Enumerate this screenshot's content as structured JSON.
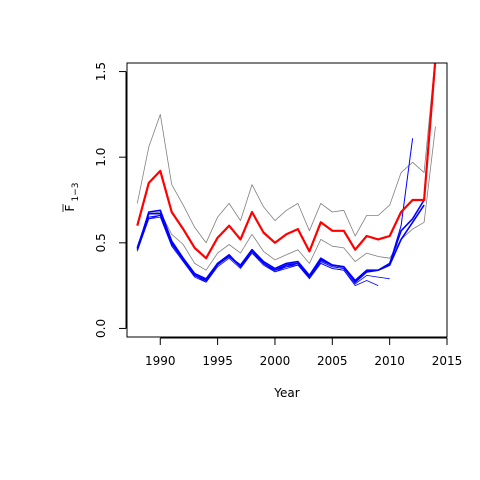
{
  "chart_data": {
    "type": "line",
    "xlabel": "Year",
    "ylabel_main": "F",
    "ylabel_sub": "1−3",
    "xlim": [
      1987.1,
      2015.0
    ],
    "ylim": [
      -0.05,
      1.55
    ],
    "xticks": [
      1990,
      1995,
      2000,
      2005,
      2010,
      2015
    ],
    "yticks": [
      0.0,
      0.5,
      1.0,
      1.5
    ],
    "ytick_labels": [
      "0.0",
      "0.5",
      "1.0",
      "1.5"
    ],
    "grid": false,
    "colors": {
      "main": "#ff0000",
      "ci": "#808080",
      "retro": "#0000ff"
    },
    "series": [
      {
        "role": "main",
        "color": "#ff0000",
        "width": 2.2,
        "x": [
          1988,
          1989,
          1990,
          1991,
          1992,
          1993,
          1994,
          1995,
          1996,
          1997,
          1998,
          1999,
          2000,
          2001,
          2002,
          2003,
          2004,
          2005,
          2006,
          2007,
          2008,
          2009,
          2010,
          2011,
          2012,
          2013,
          2014
        ],
        "y": [
          0.6,
          0.85,
          0.92,
          0.68,
          0.58,
          0.47,
          0.41,
          0.53,
          0.6,
          0.52,
          0.68,
          0.56,
          0.5,
          0.55,
          0.58,
          0.45,
          0.62,
          0.57,
          0.57,
          0.46,
          0.54,
          0.52,
          0.54,
          0.68,
          0.75,
          0.75,
          1.58
        ]
      },
      {
        "role": "ci-upper",
        "color": "#808080",
        "width": 0.8,
        "x": [
          1988,
          1989,
          1990,
          1991,
          1992,
          1993,
          1994,
          1995,
          1996,
          1997,
          1998,
          1999,
          2000,
          2001,
          2002,
          2003,
          2004,
          2005,
          2006,
          2007,
          2008,
          2009,
          2010,
          2011,
          2012,
          2013,
          2014
        ],
        "y": [
          0.73,
          1.06,
          1.25,
          0.84,
          0.72,
          0.59,
          0.5,
          0.65,
          0.73,
          0.63,
          0.84,
          0.71,
          0.63,
          0.69,
          0.73,
          0.57,
          0.73,
          0.68,
          0.69,
          0.54,
          0.66,
          0.66,
          0.72,
          0.91,
          0.97,
          0.91,
          1.6
        ]
      },
      {
        "role": "ci-lower",
        "color": "#808080",
        "width": 0.8,
        "x": [
          1988,
          1989,
          1990,
          1991,
          1992,
          1993,
          1994,
          1995,
          1996,
          1997,
          1998,
          1999,
          2000,
          2001,
          2002,
          2003,
          2004,
          2005,
          2006,
          2007,
          2008,
          2009,
          2010,
          2011,
          2012,
          2013,
          2014
        ],
        "y": [
          0.48,
          0.67,
          0.68,
          0.55,
          0.49,
          0.38,
          0.34,
          0.44,
          0.49,
          0.44,
          0.55,
          0.45,
          0.4,
          0.43,
          0.46,
          0.38,
          0.52,
          0.48,
          0.47,
          0.39,
          0.44,
          0.42,
          0.41,
          0.52,
          0.58,
          0.62,
          1.18
        ]
      },
      {
        "role": "retro",
        "color": "#0000ff",
        "width": 1.6,
        "x": [
          1988,
          1989,
          1990,
          1991,
          1992,
          1993,
          1994,
          1995,
          1996,
          1997,
          1998,
          1999,
          2000,
          2001,
          2002,
          2003,
          2004,
          2005,
          2006,
          2007,
          2008,
          2009,
          2010,
          2011,
          2012,
          2013,
          2014
        ],
        "y": [
          0.47,
          0.67,
          0.67,
          0.5,
          0.4,
          0.31,
          0.28,
          0.38,
          0.43,
          0.36,
          0.46,
          0.38,
          0.34,
          0.37,
          0.38,
          0.3,
          0.4,
          0.37,
          0.36,
          0.27,
          0.33,
          0.34,
          0.38,
          0.57,
          0.64,
          0.75,
          1.58
        ]
      },
      {
        "role": "retro",
        "color": "#0000ff",
        "width": 1.6,
        "x": [
          1988,
          1989,
          1990,
          1991,
          1992,
          1993,
          1994,
          1995,
          1996,
          1997,
          1998,
          1999,
          2000,
          2001,
          2002,
          2003,
          2004,
          2005,
          2006,
          2007,
          2008,
          2009,
          2010,
          2011,
          2012,
          2013
        ],
        "y": [
          0.46,
          0.68,
          0.69,
          0.51,
          0.41,
          0.32,
          0.29,
          0.38,
          0.42,
          0.37,
          0.46,
          0.39,
          0.35,
          0.38,
          0.39,
          0.31,
          0.41,
          0.37,
          0.36,
          0.28,
          0.34,
          0.34,
          0.37,
          0.52,
          0.62,
          0.72
        ]
      },
      {
        "role": "retro",
        "color": "#0000ff",
        "width": 1.0,
        "x": [
          1988,
          1989,
          1990,
          1991,
          1992,
          1993,
          1994,
          1995,
          1996,
          1997,
          1998,
          1999,
          2000,
          2001,
          2002,
          2003,
          2004,
          2005,
          2006,
          2007,
          2008,
          2009,
          2010,
          2011,
          2012
        ],
        "y": [
          0.47,
          0.65,
          0.66,
          0.49,
          0.4,
          0.31,
          0.28,
          0.37,
          0.42,
          0.36,
          0.45,
          0.38,
          0.34,
          0.36,
          0.38,
          0.3,
          0.39,
          0.36,
          0.35,
          0.27,
          0.33,
          0.34,
          0.38,
          0.6,
          1.11
        ]
      },
      {
        "role": "retro",
        "color": "#0000ff",
        "width": 0.8,
        "x": [
          1988,
          1989,
          1990,
          1991,
          1992,
          1993,
          1994,
          1995,
          1996,
          1997,
          1998,
          1999,
          2000,
          2001,
          2002,
          2003,
          2004,
          2005,
          2006,
          2007,
          2008,
          2009,
          2010
        ],
        "y": [
          0.46,
          0.64,
          0.66,
          0.49,
          0.4,
          0.31,
          0.27,
          0.37,
          0.42,
          0.36,
          0.44,
          0.38,
          0.33,
          0.36,
          0.37,
          0.3,
          0.38,
          0.35,
          0.34,
          0.26,
          0.31,
          0.3,
          0.29
        ]
      },
      {
        "role": "retro",
        "color": "#0000ff",
        "width": 0.8,
        "x": [
          1988,
          1989,
          1990,
          1991,
          1992,
          1993,
          1994,
          1995,
          1996,
          1997,
          1998,
          1999,
          2000,
          2001,
          2002,
          2003,
          2004,
          2005,
          2006,
          2007,
          2008,
          2009
        ],
        "y": [
          0.45,
          0.64,
          0.65,
          0.48,
          0.39,
          0.3,
          0.27,
          0.36,
          0.41,
          0.35,
          0.44,
          0.37,
          0.33,
          0.35,
          0.37,
          0.29,
          0.38,
          0.35,
          0.34,
          0.25,
          0.28,
          0.25
        ]
      }
    ]
  }
}
